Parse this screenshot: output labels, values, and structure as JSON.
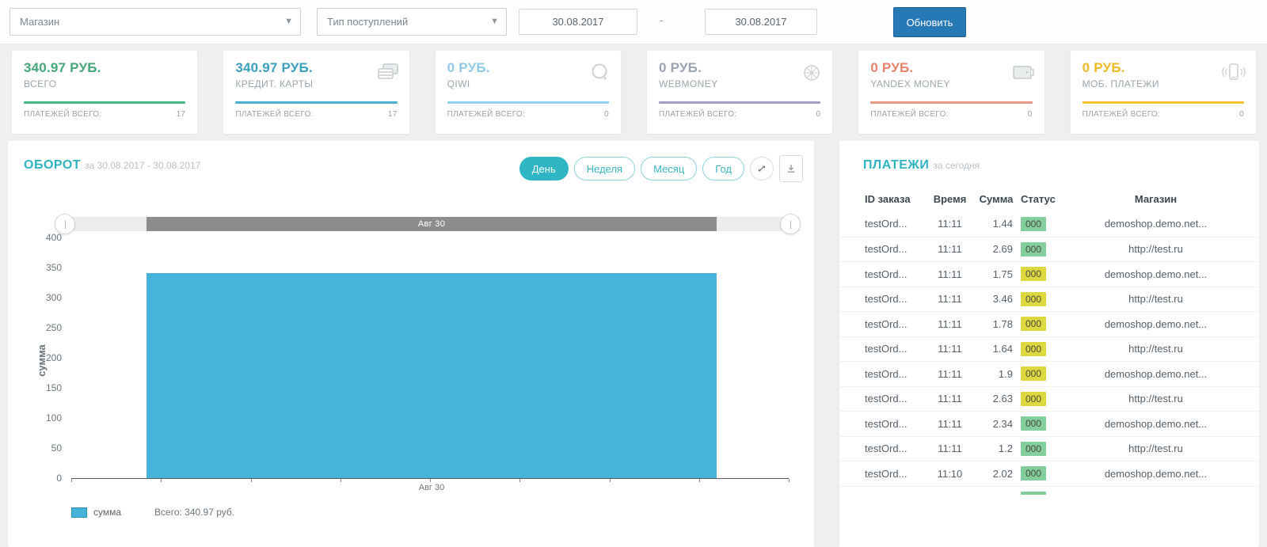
{
  "filters": {
    "shop_select": {
      "value": "Магазин"
    },
    "type_select": {
      "value": "Тип поступлений"
    },
    "date_from": "30.08.2017",
    "date_to": "30.08.2017",
    "separator": "-",
    "update_button": "Обновить"
  },
  "stats": {
    "payments_total_label": "ПЛАТЕЖЕЙ ВСЕГО:",
    "cards": [
      {
        "value": "340.97",
        "currency": "РУБ.",
        "label": "ВСЕГО",
        "count": "17",
        "color": "#44a87a",
        "line": "#43b97e",
        "icon": "none"
      },
      {
        "value": "340.97",
        "currency": "РУБ.",
        "label": "КРЕДИТ. КАРТЫ",
        "count": "17",
        "color": "#3aa0bd",
        "line": "#4ab0cf",
        "icon": "credit-card"
      },
      {
        "value": "0",
        "currency": "РУБ.",
        "label": "QIWI",
        "count": "0",
        "color": "#8fcbe9",
        "line": "#8fd0f0",
        "icon": "qiwi"
      },
      {
        "value": "0",
        "currency": "РУБ.",
        "label": "WEBMONEY",
        "count": "0",
        "color": "#9aa3b4",
        "line": "#9e9ec0",
        "icon": "webmoney"
      },
      {
        "value": "0",
        "currency": "РУБ.",
        "label": "YANDEX MONEY",
        "count": "0",
        "color": "#e8836b",
        "line": "#e89a86",
        "icon": "yandex-money"
      },
      {
        "value": "0",
        "currency": "РУБ.",
        "label": "МОБ. ПЛАТЕЖИ",
        "count": "0",
        "color": "#edb927",
        "line": "#f2c12e",
        "icon": "mobile"
      }
    ]
  },
  "chart_panel": {
    "title": "ОБОРОТ",
    "subtitle": "за 30.08.2017 - 30.08.2017",
    "range_buttons": [
      {
        "label": "День",
        "active": true
      },
      {
        "label": "Неделя",
        "active": false
      },
      {
        "label": "Месяц",
        "active": false
      },
      {
        "label": "Год",
        "active": false
      }
    ]
  },
  "chart_data": {
    "type": "bar",
    "categories": [
      "Авг 30"
    ],
    "series": [
      {
        "name": "сумма",
        "values": [
          340.97
        ]
      }
    ],
    "title": "ОБОРОТ",
    "subtitle": "за 30.08.2017 - 30.08.2017",
    "xlabel": "",
    "ylabel": "сумма",
    "ylim": [
      0,
      400
    ],
    "yticks": [
      0,
      50,
      100,
      150,
      200,
      250,
      300,
      350,
      400
    ],
    "grid": false,
    "legend_position": "bottom-left",
    "legend": [
      {
        "label": "сумма",
        "color": "#45b3da"
      }
    ],
    "legend_total": "Всего: 340.97 руб.",
    "range_slider_label": "Авг 30",
    "bar_color": "#45b3da"
  },
  "payments": {
    "title": "ПЛАТЕЖИ",
    "subtitle": "за сегодня",
    "columns": [
      "ID заказа",
      "Время",
      "Сумма",
      "Статус",
      "Магазин"
    ],
    "badge_colors": {
      "green": "#82ce9c",
      "yellow": "#ddd83f"
    },
    "rows": [
      {
        "id": "testOrd...",
        "time": "11:11",
        "sum": "1.44",
        "status": "000",
        "status_color": "green",
        "shop": "demoshop.demo.net..."
      },
      {
        "id": "testOrd...",
        "time": "11:11",
        "sum": "2.69",
        "status": "000",
        "status_color": "green",
        "shop": "http://test.ru"
      },
      {
        "id": "testOrd...",
        "time": "11:11",
        "sum": "1.75",
        "status": "000",
        "status_color": "yellow",
        "shop": "demoshop.demo.net..."
      },
      {
        "id": "testOrd...",
        "time": "11:11",
        "sum": "3.46",
        "status": "000",
        "status_color": "yellow",
        "shop": "http://test.ru"
      },
      {
        "id": "testOrd...",
        "time": "11:11",
        "sum": "1.78",
        "status": "000",
        "status_color": "yellow",
        "shop": "demoshop.demo.net..."
      },
      {
        "id": "testOrd...",
        "time": "11:11",
        "sum": "1.64",
        "status": "000",
        "status_color": "yellow",
        "shop": "http://test.ru"
      },
      {
        "id": "testOrd...",
        "time": "11:11",
        "sum": "1.9",
        "status": "000",
        "status_color": "yellow",
        "shop": "demoshop.demo.net..."
      },
      {
        "id": "testOrd...",
        "time": "11:11",
        "sum": "2.63",
        "status": "000",
        "status_color": "yellow",
        "shop": "http://test.ru"
      },
      {
        "id": "testOrd...",
        "time": "11:11",
        "sum": "2.34",
        "status": "000",
        "status_color": "green",
        "shop": "demoshop.demo.net..."
      },
      {
        "id": "testOrd...",
        "time": "11:11",
        "sum": "1.2",
        "status": "000",
        "status_color": "green",
        "shop": "http://test.ru"
      },
      {
        "id": "testOrd...",
        "time": "11:10",
        "sum": "2.02",
        "status": "000",
        "status_color": "green",
        "shop": "demoshop.demo.net..."
      }
    ],
    "partial_next_row_badge_color": "green"
  }
}
